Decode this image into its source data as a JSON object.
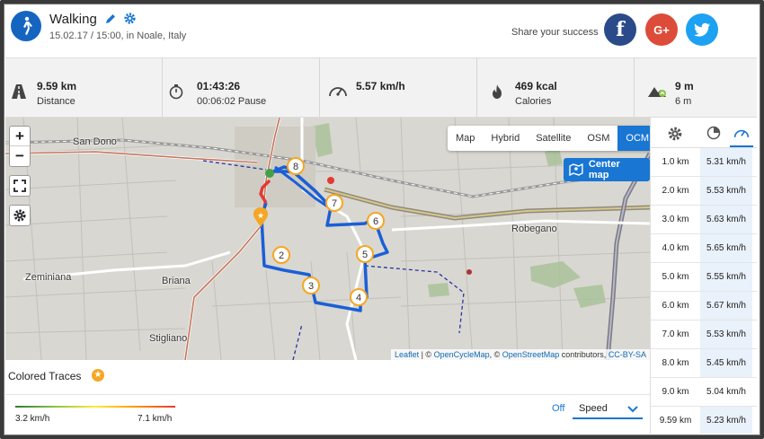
{
  "activity": {
    "title": "Walking",
    "subtitle": "15.02.17 / 15:00, in Noale, Italy"
  },
  "share": {
    "label": "Share your success",
    "facebook": "f",
    "google": "G+",
    "twitter": "t"
  },
  "stats": [
    {
      "value": "9.59 km",
      "label": "Distance",
      "icon": "road-icon"
    },
    {
      "value": "01:43:26",
      "label": "00:06:02 Pause",
      "icon": "stopwatch-icon"
    },
    {
      "value": "5.57 km/h",
      "label": "",
      "icon": "speedometer-icon"
    },
    {
      "value": "469 kcal",
      "label": "Calories",
      "icon": "flame-icon"
    },
    {
      "value": "9 m",
      "label": "6 m",
      "icon": "elevation-icon"
    }
  ],
  "map": {
    "layers": [
      "Map",
      "Hybrid",
      "Satellite",
      "OSM",
      "OCM"
    ],
    "active_layer": "OCM",
    "center_label": "Center map",
    "zoom_in": "+",
    "zoom_out": "−",
    "places": [
      "San Dono",
      "Robegano",
      "Zeminiana",
      "Briana",
      "Stigliano"
    ],
    "markers": [
      "8",
      "7",
      "6",
      "5",
      "4",
      "3",
      "2"
    ],
    "attribution": {
      "leaflet": "Leaflet",
      "sep1": " | © ",
      "ocm": "OpenCycleMap",
      "sep2": ", © ",
      "osm": "OpenStreetMap",
      "contrib": " contributors, ",
      "license": "CC-BY-SA"
    }
  },
  "traces": {
    "heading": "Colored Traces",
    "min": "3.2 km/h",
    "max": "7.1 km/h",
    "off_label": "Off",
    "selected": "Speed"
  },
  "splits": [
    {
      "distance": "1.0 km",
      "speed": "5.31 km/h"
    },
    {
      "distance": "2.0 km",
      "speed": "5.53 km/h"
    },
    {
      "distance": "3.0 km",
      "speed": "5.63 km/h"
    },
    {
      "distance": "4.0 km",
      "speed": "5.65 km/h"
    },
    {
      "distance": "5.0 km",
      "speed": "5.55 km/h"
    },
    {
      "distance": "6.0 km",
      "speed": "5.67 km/h"
    },
    {
      "distance": "7.0 km",
      "speed": "5.53 km/h"
    },
    {
      "distance": "8.0 km",
      "speed": "5.45 km/h"
    },
    {
      "distance": "9.0 km",
      "speed": "5.04 km/h"
    },
    {
      "distance": "9.59 km",
      "speed": "5.23 km/h"
    }
  ],
  "colors": {
    "accent": "#1976d2",
    "route": "#1a5fd6",
    "marker": "#f5a623",
    "facebook": "#2b4a8a",
    "google": "#dd4b39",
    "twitter": "#1da1f2"
  }
}
